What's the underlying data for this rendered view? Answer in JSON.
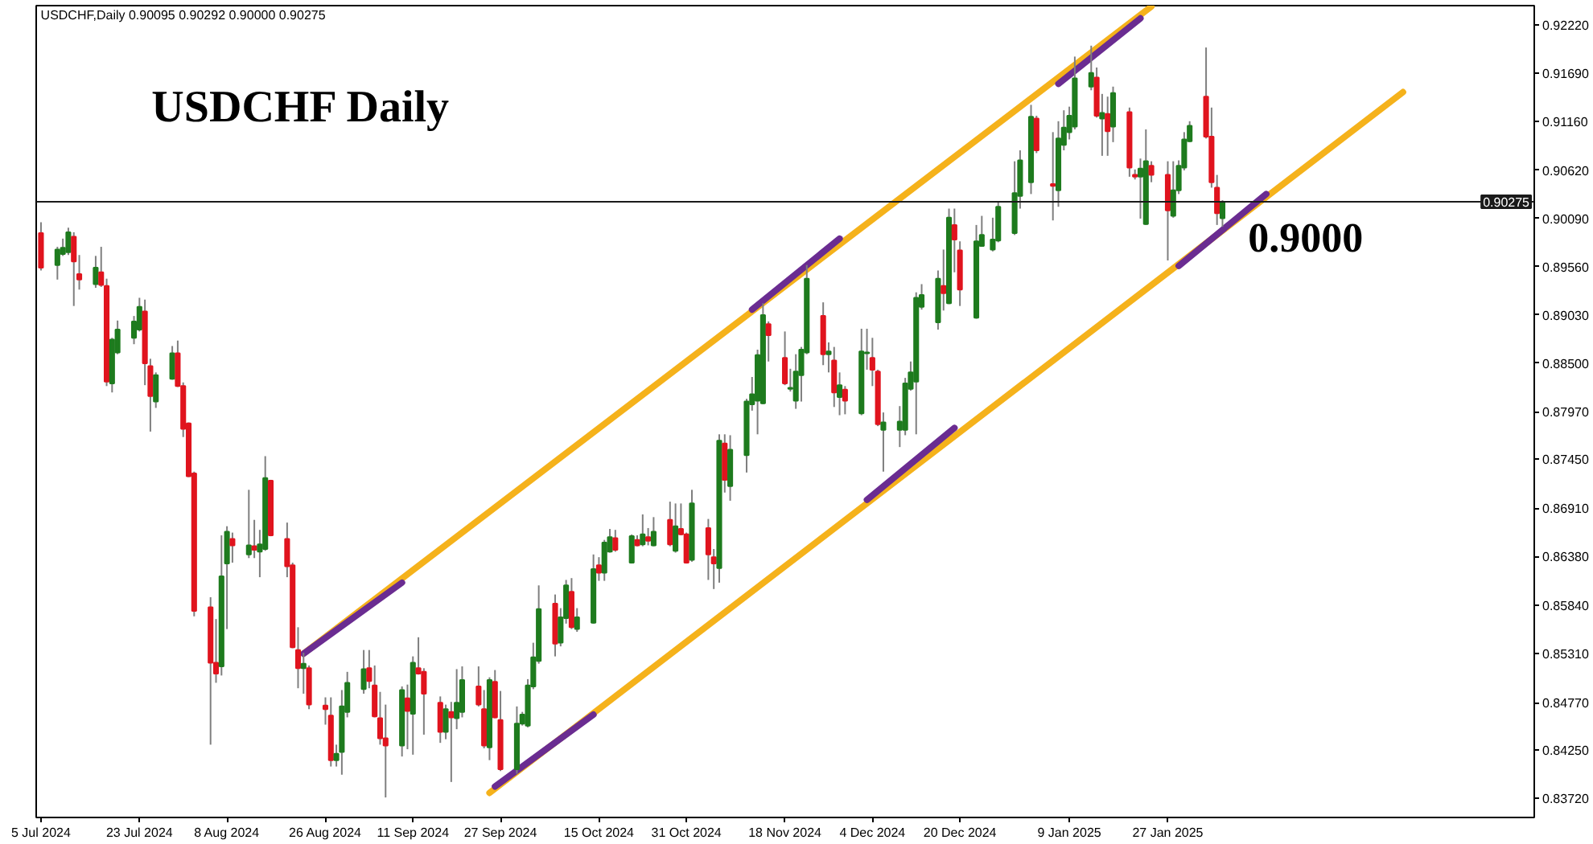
{
  "chart_data": {
    "type": "candlestick",
    "title": "USDCHF Daily",
    "annotations": [
      "USDCHF,Daily 0.90095 0.90292 0.90000 0.90275",
      "0.9000"
    ],
    "x": [
      "2024-07-05",
      "2024-07-08",
      "2024-07-09",
      "2024-07-10",
      "2024-07-11",
      "2024-07-12",
      "2024-07-15",
      "2024-07-16",
      "2024-07-17",
      "2024-07-18",
      "2024-07-19",
      "2024-07-22",
      "2024-07-23",
      "2024-07-24",
      "2024-07-25",
      "2024-07-26",
      "2024-07-29",
      "2024-07-30",
      "2024-07-31",
      "2024-08-01",
      "2024-08-02",
      "2024-08-05",
      "2024-08-06",
      "2024-08-07",
      "2024-08-08",
      "2024-08-09",
      "2024-08-12",
      "2024-08-13",
      "2024-08-14",
      "2024-08-15",
      "2024-08-16",
      "2024-08-19",
      "2024-08-20",
      "2024-08-21",
      "2024-08-22",
      "2024-08-23",
      "2024-08-26",
      "2024-08-27",
      "2024-08-28",
      "2024-08-29",
      "2024-08-30",
      "2024-09-02",
      "2024-09-03",
      "2024-09-04",
      "2024-09-05",
      "2024-09-06",
      "2024-09-09",
      "2024-09-10",
      "2024-09-11",
      "2024-09-12",
      "2024-09-13",
      "2024-09-16",
      "2024-09-17",
      "2024-09-18",
      "2024-09-19",
      "2024-09-20",
      "2024-09-23",
      "2024-09-24",
      "2024-09-25",
      "2024-09-26",
      "2024-09-27",
      "2024-09-30",
      "2024-10-01",
      "2024-10-02",
      "2024-10-03",
      "2024-10-04",
      "2024-10-07",
      "2024-10-08",
      "2024-10-09",
      "2024-10-10",
      "2024-10-11",
      "2024-10-14",
      "2024-10-15",
      "2024-10-16",
      "2024-10-17",
      "2024-10-18",
      "2024-10-21",
      "2024-10-22",
      "2024-10-23",
      "2024-10-24",
      "2024-10-25",
      "2024-10-28",
      "2024-10-29",
      "2024-10-30",
      "2024-10-31",
      "2024-11-01",
      "2024-11-04",
      "2024-11-05",
      "2024-11-06",
      "2024-11-07",
      "2024-11-08",
      "2024-11-11",
      "2024-11-12",
      "2024-11-13",
      "2024-11-14",
      "2024-11-15",
      "2024-11-18",
      "2024-11-19",
      "2024-11-20",
      "2024-11-21",
      "2024-11-22",
      "2024-11-25",
      "2024-11-26",
      "2024-11-27",
      "2024-11-28",
      "2024-11-29",
      "2024-12-02",
      "2024-12-03",
      "2024-12-04",
      "2024-12-05",
      "2024-12-06",
      "2024-12-09",
      "2024-12-10",
      "2024-12-11",
      "2024-12-12",
      "2024-12-13",
      "2024-12-16",
      "2024-12-17",
      "2024-12-18",
      "2024-12-19",
      "2024-12-20",
      "2024-12-23",
      "2024-12-24",
      "2024-12-26",
      "2024-12-27",
      "2024-12-30",
      "2024-12-31",
      "2025-01-02",
      "2025-01-03",
      "2025-01-06",
      "2025-01-07",
      "2025-01-08",
      "2025-01-09",
      "2025-01-10",
      "2025-01-13",
      "2025-01-14",
      "2025-01-15",
      "2025-01-16",
      "2025-01-17",
      "2025-01-20",
      "2025-01-21",
      "2025-01-22",
      "2025-01-23",
      "2025-01-24",
      "2025-01-27",
      "2025-01-28",
      "2025-01-29",
      "2025-01-30",
      "2025-01-31",
      "2025-02-03",
      "2025-02-04",
      "2025-02-05",
      "2025-02-06"
    ],
    "ohlc": [
      [
        0.8993,
        0.9005,
        0.8952,
        0.8955
      ],
      [
        0.8958,
        0.8978,
        0.8942,
        0.8975
      ],
      [
        0.897,
        0.8987,
        0.8968,
        0.8977
      ],
      [
        0.8972,
        0.8999,
        0.8969,
        0.8994
      ],
      [
        0.8989,
        0.8994,
        0.8913,
        0.8962
      ],
      [
        0.8948,
        0.8969,
        0.8931,
        0.8942
      ],
      [
        0.8937,
        0.8968,
        0.8933,
        0.8955
      ],
      [
        0.895,
        0.8978,
        0.8934,
        0.8936
      ],
      [
        0.8935,
        0.8943,
        0.8825,
        0.883
      ],
      [
        0.8828,
        0.8878,
        0.8818,
        0.8876
      ],
      [
        0.8862,
        0.8897,
        0.886,
        0.8887
      ],
      [
        0.8878,
        0.8902,
        0.8871,
        0.8896
      ],
      [
        0.8887,
        0.8922,
        0.8885,
        0.8912
      ],
      [
        0.8907,
        0.892,
        0.8826,
        0.885
      ],
      [
        0.8847,
        0.8855,
        0.8775,
        0.8814
      ],
      [
        0.8808,
        0.884,
        0.8801,
        0.8837
      ],
      [
        0.8833,
        0.8869,
        0.8832,
        0.8861
      ],
      [
        0.8861,
        0.8875,
        0.8824,
        0.8825
      ],
      [
        0.8825,
        0.8829,
        0.8769,
        0.8778
      ],
      [
        0.8784,
        0.8785,
        0.8725,
        0.8726
      ],
      [
        0.8729,
        0.8731,
        0.8572,
        0.8578
      ],
      [
        0.8582,
        0.8593,
        0.8431,
        0.8521
      ],
      [
        0.8521,
        0.8569,
        0.8499,
        0.8509
      ],
      [
        0.8517,
        0.8661,
        0.8507,
        0.8616
      ],
      [
        0.863,
        0.8671,
        0.8558,
        0.8665
      ],
      [
        0.8657,
        0.8664,
        0.8631,
        0.865
      ],
      [
        0.864,
        0.8711,
        0.8636,
        0.865
      ],
      [
        0.8649,
        0.8678,
        0.8636,
        0.8645
      ],
      [
        0.8643,
        0.8667,
        0.8615,
        0.8651
      ],
      [
        0.8646,
        0.8748,
        0.8644,
        0.8724
      ],
      [
        0.8721,
        0.8722,
        0.866,
        0.8661
      ],
      [
        0.8657,
        0.8675,
        0.8615,
        0.8627
      ],
      [
        0.8628,
        0.8631,
        0.8537,
        0.8538
      ],
      [
        0.8535,
        0.856,
        0.8493,
        0.8515
      ],
      [
        0.8515,
        0.8532,
        0.8487,
        0.852
      ],
      [
        0.8515,
        0.8518,
        0.847,
        0.8475
      ],
      [
        0.8474,
        0.8483,
        0.8453,
        0.847
      ],
      [
        0.8463,
        0.8483,
        0.8407,
        0.8414
      ],
      [
        0.8414,
        0.8431,
        0.8407,
        0.8421
      ],
      [
        0.8423,
        0.8491,
        0.8398,
        0.8473
      ],
      [
        0.8467,
        0.8511,
        0.8461,
        0.8499
      ],
      [
        0.8492,
        0.8535,
        0.8487,
        0.8514
      ],
      [
        0.8515,
        0.8535,
        0.8493,
        0.8501
      ],
      [
        0.8496,
        0.8518,
        0.8461,
        0.8462
      ],
      [
        0.846,
        0.8489,
        0.8431,
        0.8438
      ],
      [
        0.8438,
        0.8475,
        0.8373,
        0.843
      ],
      [
        0.843,
        0.8495,
        0.8418,
        0.8491
      ],
      [
        0.8482,
        0.8497,
        0.8426,
        0.8468
      ],
      [
        0.8465,
        0.8528,
        0.842,
        0.8521
      ],
      [
        0.8515,
        0.8549,
        0.8508,
        0.8509
      ],
      [
        0.8511,
        0.8515,
        0.8442,
        0.8487
      ],
      [
        0.8477,
        0.8484,
        0.8433,
        0.8445
      ],
      [
        0.8445,
        0.8475,
        0.8437,
        0.847
      ],
      [
        0.8467,
        0.8478,
        0.839,
        0.8461
      ],
      [
        0.846,
        0.8514,
        0.8448,
        0.8477
      ],
      [
        0.8467,
        0.8517,
        0.8461,
        0.8502
      ],
      [
        0.8495,
        0.8517,
        0.8473,
        0.8475
      ],
      [
        0.847,
        0.8491,
        0.8427,
        0.843
      ],
      [
        0.8428,
        0.8505,
        0.8414,
        0.8502
      ],
      [
        0.85,
        0.8513,
        0.846,
        0.8461
      ],
      [
        0.8458,
        0.849,
        0.8402,
        0.8404
      ],
      [
        0.8404,
        0.8473,
        0.8399,
        0.8454
      ],
      [
        0.8454,
        0.8467,
        0.8452,
        0.8464
      ],
      [
        0.8452,
        0.8503,
        0.845,
        0.8496
      ],
      [
        0.8495,
        0.8543,
        0.8492,
        0.8527
      ],
      [
        0.8523,
        0.8606,
        0.852,
        0.858
      ],
      [
        0.8586,
        0.8596,
        0.8528,
        0.8542
      ],
      [
        0.8543,
        0.8581,
        0.8539,
        0.8571
      ],
      [
        0.857,
        0.8612,
        0.8564,
        0.8606
      ],
      [
        0.8599,
        0.8614,
        0.8558,
        0.856
      ],
      [
        0.8558,
        0.8581,
        0.8555,
        0.8571
      ],
      [
        0.8565,
        0.864,
        0.8564,
        0.8624
      ],
      [
        0.8628,
        0.8637,
        0.8611,
        0.862
      ],
      [
        0.862,
        0.8656,
        0.8611,
        0.8653
      ],
      [
        0.8643,
        0.8668,
        0.8642,
        0.8659
      ],
      [
        0.8658,
        0.8667,
        0.8643,
        0.8645
      ],
      [
        0.8631,
        0.8662,
        0.863,
        0.866
      ],
      [
        0.8656,
        0.8661,
        0.8649,
        0.865
      ],
      [
        0.8651,
        0.8684,
        0.8649,
        0.8662
      ],
      [
        0.8659,
        0.8669,
        0.865,
        0.8655
      ],
      [
        0.865,
        0.8681,
        0.8649,
        0.8665
      ],
      [
        0.8678,
        0.8698,
        0.8649,
        0.8651
      ],
      [
        0.8644,
        0.8696,
        0.8642,
        0.8671
      ],
      [
        0.8668,
        0.8696,
        0.8661,
        0.8662
      ],
      [
        0.8662,
        0.8664,
        0.863,
        0.8631
      ],
      [
        0.8634,
        0.8711,
        0.8632,
        0.8696
      ],
      [
        0.8669,
        0.8679,
        0.8612,
        0.864
      ],
      [
        0.8637,
        0.8646,
        0.8602,
        0.863
      ],
      [
        0.8625,
        0.8772,
        0.8609,
        0.8765
      ],
      [
        0.8762,
        0.8772,
        0.8708,
        0.8722
      ],
      [
        0.8715,
        0.8771,
        0.8699,
        0.8755
      ],
      [
        0.8749,
        0.8811,
        0.873,
        0.8808
      ],
      [
        0.8805,
        0.8835,
        0.8798,
        0.8816
      ],
      [
        0.8809,
        0.8865,
        0.8772,
        0.8859
      ],
      [
        0.8806,
        0.8916,
        0.8805,
        0.8903
      ],
      [
        0.8893,
        0.8896,
        0.8852,
        0.8881
      ],
      [
        0.8856,
        0.8885,
        0.8826,
        0.8828
      ],
      [
        0.8822,
        0.8844,
        0.8819,
        0.8823
      ],
      [
        0.8809,
        0.886,
        0.88,
        0.8841
      ],
      [
        0.8837,
        0.8868,
        0.8808,
        0.8865
      ],
      [
        0.8862,
        0.8958,
        0.886,
        0.8943
      ],
      [
        0.8902,
        0.8917,
        0.8848,
        0.886
      ],
      [
        0.886,
        0.8873,
        0.884,
        0.8863
      ],
      [
        0.8853,
        0.8868,
        0.8802,
        0.8818
      ],
      [
        0.8813,
        0.884,
        0.8793,
        0.8826
      ],
      [
        0.8821,
        0.8825,
        0.8794,
        0.8809
      ],
      [
        0.8795,
        0.8888,
        0.8793,
        0.8863
      ],
      [
        0.8861,
        0.8888,
        0.8843,
        0.8862
      ],
      [
        0.8856,
        0.8878,
        0.8825,
        0.8843
      ],
      [
        0.8841,
        0.8843,
        0.8781,
        0.8783
      ],
      [
        0.8777,
        0.8796,
        0.8731,
        0.8785
      ],
      [
        0.8777,
        0.8803,
        0.8758,
        0.8786
      ],
      [
        0.8777,
        0.8834,
        0.8771,
        0.8828
      ],
      [
        0.8822,
        0.8852,
        0.882,
        0.884
      ],
      [
        0.883,
        0.8928,
        0.8772,
        0.8922
      ],
      [
        0.8912,
        0.8937,
        0.8909,
        0.8925
      ],
      [
        0.8895,
        0.8952,
        0.8887,
        0.8943
      ],
      [
        0.8935,
        0.8975,
        0.8908,
        0.8927
      ],
      [
        0.8916,
        0.902,
        0.8915,
        0.901
      ],
      [
        0.9002,
        0.902,
        0.895,
        0.8986
      ],
      [
        0.8974,
        0.8984,
        0.8913,
        0.8931
      ],
      [
        0.89,
        0.9002,
        0.8899,
        0.8984
      ],
      [
        0.8979,
        0.9012,
        0.8978,
        0.8991
      ],
      [
        0.8975,
        0.901,
        0.8973,
        0.8986
      ],
      [
        0.8985,
        0.9028,
        0.8983,
        0.9022
      ],
      [
        0.8993,
        0.9072,
        0.8991,
        0.9037
      ],
      [
        0.9034,
        0.9084,
        0.902,
        0.9073
      ],
      [
        0.9049,
        0.9134,
        0.9036,
        0.9121
      ],
      [
        0.9119,
        0.9122,
        0.9081,
        0.9084
      ],
      [
        0.9047,
        0.9104,
        0.9007,
        0.9045
      ],
      [
        0.904,
        0.9116,
        0.9022,
        0.9097
      ],
      [
        0.909,
        0.9128,
        0.9084,
        0.9109
      ],
      [
        0.9104,
        0.9132,
        0.9096,
        0.9122
      ],
      [
        0.911,
        0.9187,
        0.9107,
        0.9163
      ],
      [
        0.9154,
        0.9199,
        0.915,
        0.9169
      ],
      [
        0.9164,
        0.9175,
        0.912,
        0.9122
      ],
      [
        0.9119,
        0.9146,
        0.9078,
        0.9125
      ],
      [
        0.9124,
        0.9143,
        0.9078,
        0.9105
      ],
      [
        0.911,
        0.9154,
        0.9093,
        0.9147
      ],
      [
        0.9126,
        0.9131,
        0.9055,
        0.9065
      ],
      [
        0.9057,
        0.9063,
        0.9052,
        0.9055
      ],
      [
        0.9055,
        0.9075,
        0.9009,
        0.9064
      ],
      [
        0.9003,
        0.9107,
        0.9002,
        0.9072
      ],
      [
        0.9067,
        0.9072,
        0.9049,
        0.9057
      ],
      [
        0.9057,
        0.9072,
        0.8963,
        0.9018
      ],
      [
        0.9012,
        0.9072,
        0.901,
        0.904
      ],
      [
        0.904,
        0.9073,
        0.9036,
        0.9067
      ],
      [
        0.9065,
        0.9104,
        0.9062,
        0.9096
      ],
      [
        0.9094,
        0.9116,
        0.9093,
        0.9111
      ],
      [
        0.9143,
        0.9197,
        0.9097,
        0.9099
      ],
      [
        0.9099,
        0.9131,
        0.9043,
        0.9049
      ],
      [
        0.9043,
        0.9057,
        0.9002,
        0.9015
      ],
      [
        0.90095,
        0.90292,
        0.9,
        0.90275
      ]
    ],
    "colors": [
      "#e0141e",
      "#1e7b1e",
      "#1e7b1e",
      "#1e7b1e",
      "#e0141e",
      "#e0141e",
      "#1e7b1e",
      "#e0141e",
      "#e0141e",
      "#1e7b1e",
      "#1e7b1e",
      "#1e7b1e",
      "#1e7b1e",
      "#e0141e",
      "#e0141e",
      "#1e7b1e",
      "#1e7b1e",
      "#e0141e",
      "#e0141e",
      "#e0141e",
      "#e0141e",
      "#e0141e",
      "#e0141e",
      "#1e7b1e",
      "#1e7b1e",
      "#e0141e",
      "#1e7b1e",
      "#e0141e",
      "#1e7b1e",
      "#1e7b1e",
      "#e0141e",
      "#e0141e",
      "#e0141e",
      "#e0141e",
      "#1e7b1e",
      "#e0141e",
      "#e0141e",
      "#e0141e",
      "#1e7b1e",
      "#1e7b1e",
      "#1e7b1e",
      "#1e7b1e",
      "#e0141e",
      "#e0141e",
      "#e0141e",
      "#e0141e",
      "#1e7b1e",
      "#e0141e",
      "#1e7b1e",
      "#e0141e",
      "#e0141e",
      "#e0141e",
      "#1e7b1e",
      "#e0141e",
      "#1e7b1e",
      "#1e7b1e",
      "#e0141e",
      "#e0141e",
      "#1e7b1e",
      "#e0141e",
      "#e0141e",
      "#1e7b1e",
      "#1e7b1e",
      "#1e7b1e",
      "#1e7b1e",
      "#1e7b1e",
      "#e0141e",
      "#1e7b1e",
      "#1e7b1e",
      "#e0141e",
      "#1e7b1e",
      "#1e7b1e",
      "#e0141e",
      "#1e7b1e",
      "#1e7b1e",
      "#e0141e",
      "#1e7b1e",
      "#e0141e",
      "#1e7b1e",
      "#e0141e",
      "#1e7b1e",
      "#e0141e",
      "#1e7b1e",
      "#e0141e",
      "#e0141e",
      "#1e7b1e",
      "#e0141e",
      "#e0141e",
      "#1e7b1e",
      "#e0141e",
      "#1e7b1e",
      "#1e7b1e",
      "#1e7b1e",
      "#1e7b1e",
      "#1e7b1e",
      "#e0141e",
      "#e0141e",
      "#1e7b1e",
      "#1e7b1e",
      "#1e7b1e",
      "#1e7b1e",
      "#e0141e",
      "#1e7b1e",
      "#e0141e",
      "#1e7b1e",
      "#e0141e",
      "#1e7b1e",
      "#1e7b1e",
      "#e0141e",
      "#e0141e",
      "#1e7b1e",
      "#1e7b1e",
      "#1e7b1e",
      "#1e7b1e",
      "#1e7b1e",
      "#1e7b1e",
      "#1e7b1e",
      "#e0141e",
      "#1e7b1e",
      "#e0141e",
      "#e0141e",
      "#1e7b1e",
      "#1e7b1e",
      "#1e7b1e",
      "#1e7b1e",
      "#1e7b1e",
      "#1e7b1e",
      "#1e7b1e",
      "#e0141e",
      "#e0141e",
      "#1e7b1e",
      "#1e7b1e",
      "#1e7b1e",
      "#1e7b1e",
      "#1e7b1e",
      "#e0141e",
      "#1e7b1e",
      "#e0141e",
      "#1e7b1e",
      "#e0141e",
      "#e0141e",
      "#1e7b1e",
      "#1e7b1e",
      "#e0141e",
      "#e0141e",
      "#1e7b1e",
      "#1e7b1e",
      "#1e7b1e",
      "#1e7b1e",
      "#e0141e",
      "#e0141e",
      "#e0141e",
      "#1e7b1e"
    ],
    "series": [
      {
        "type": "line",
        "color": "#f5b21b",
        "x": [
          "2024-08-22",
          "2025-01-24"
        ],
        "values": [
          0.8531,
          0.9242
        ]
      },
      {
        "type": "line",
        "color": "#f5b21b",
        "x": [
          "2024-09-25",
          "2025-03-11"
        ],
        "values": [
          0.8378,
          0.9148
        ]
      },
      {
        "type": "line",
        "color": "#6a2c91",
        "x": [
          "2024-08-22",
          "2024-09-09"
        ],
        "values": [
          0.8531,
          0.8609
        ]
      },
      {
        "type": "line",
        "color": "#6a2c91",
        "x": [
          "2024-11-12",
          "2024-11-28"
        ],
        "values": [
          0.8909,
          0.8987
        ]
      },
      {
        "type": "line",
        "color": "#6a2c91",
        "x": [
          "2025-01-07",
          "2025-01-22"
        ],
        "values": [
          0.9157,
          0.9229
        ]
      },
      {
        "type": "line",
        "color": "#6a2c91",
        "x": [
          "2024-09-26",
          "2024-10-14"
        ],
        "values": [
          0.8385,
          0.8464
        ]
      },
      {
        "type": "line",
        "color": "#6a2c91",
        "x": [
          "2024-12-03",
          "2024-12-19"
        ],
        "values": [
          0.87,
          0.8779
        ]
      },
      {
        "type": "line",
        "color": "#6a2c91",
        "x": [
          "2025-01-29",
          "2025-02-14"
        ],
        "values": [
          0.8957,
          0.9036
        ]
      }
    ],
    "ref_lines": [
      {
        "axis": "y",
        "value": 0.90275,
        "label": "0.90275",
        "color": "#1a1a1a"
      }
    ],
    "xlim": [
      "2024-07-04T03:00",
      "2025-04-04"
    ],
    "ylim": [
      0.8351,
      0.9243
    ],
    "xticks": [
      {
        "value": "2024-07-05",
        "label": "5 Jul 2024"
      },
      {
        "value": "2024-07-23",
        "label": "23 Jul 2024"
      },
      {
        "value": "2024-08-08",
        "label": "8 Aug 2024"
      },
      {
        "value": "2024-08-26",
        "label": "26 Aug 2024"
      },
      {
        "value": "2024-09-11",
        "label": "11 Sep 2024"
      },
      {
        "value": "2024-09-27",
        "label": "27 Sep 2024"
      },
      {
        "value": "2024-10-15",
        "label": "15 Oct 2024"
      },
      {
        "value": "2024-10-31",
        "label": "31 Oct 2024"
      },
      {
        "value": "2024-11-18",
        "label": "18 Nov 2024"
      },
      {
        "value": "2024-12-04",
        "label": "4 Dec 2024"
      },
      {
        "value": "2024-12-20",
        "label": "20 Dec 2024"
      },
      {
        "value": "2025-01-09",
        "label": "9 Jan 2025"
      },
      {
        "value": "2025-01-27",
        "label": "27 Jan 2025"
      }
    ],
    "yticks": [
      {
        "value": 0.8372,
        "label": "0.83720"
      },
      {
        "value": 0.8425,
        "label": "0.84250"
      },
      {
        "value": 0.8477,
        "label": "0.84770"
      },
      {
        "value": 0.8531,
        "label": "0.85310"
      },
      {
        "value": 0.8584,
        "label": "0.85840"
      },
      {
        "value": 0.8638,
        "label": "0.86380"
      },
      {
        "value": 0.8691,
        "label": "0.86910"
      },
      {
        "value": 0.8745,
        "label": "0.87450"
      },
      {
        "value": 0.8797,
        "label": "0.87970"
      },
      {
        "value": 0.885,
        "label": "0.88500"
      },
      {
        "value": 0.8903,
        "label": "0.89030"
      },
      {
        "value": 0.8956,
        "label": "0.89560"
      },
      {
        "value": 0.9009,
        "label": "0.90090"
      },
      {
        "value": 0.9062,
        "label": "0.90620"
      },
      {
        "value": 0.9116,
        "label": "0.91160"
      },
      {
        "value": 0.9169,
        "label": "0.91690"
      },
      {
        "value": 0.9222,
        "label": "0.92220"
      }
    ]
  }
}
